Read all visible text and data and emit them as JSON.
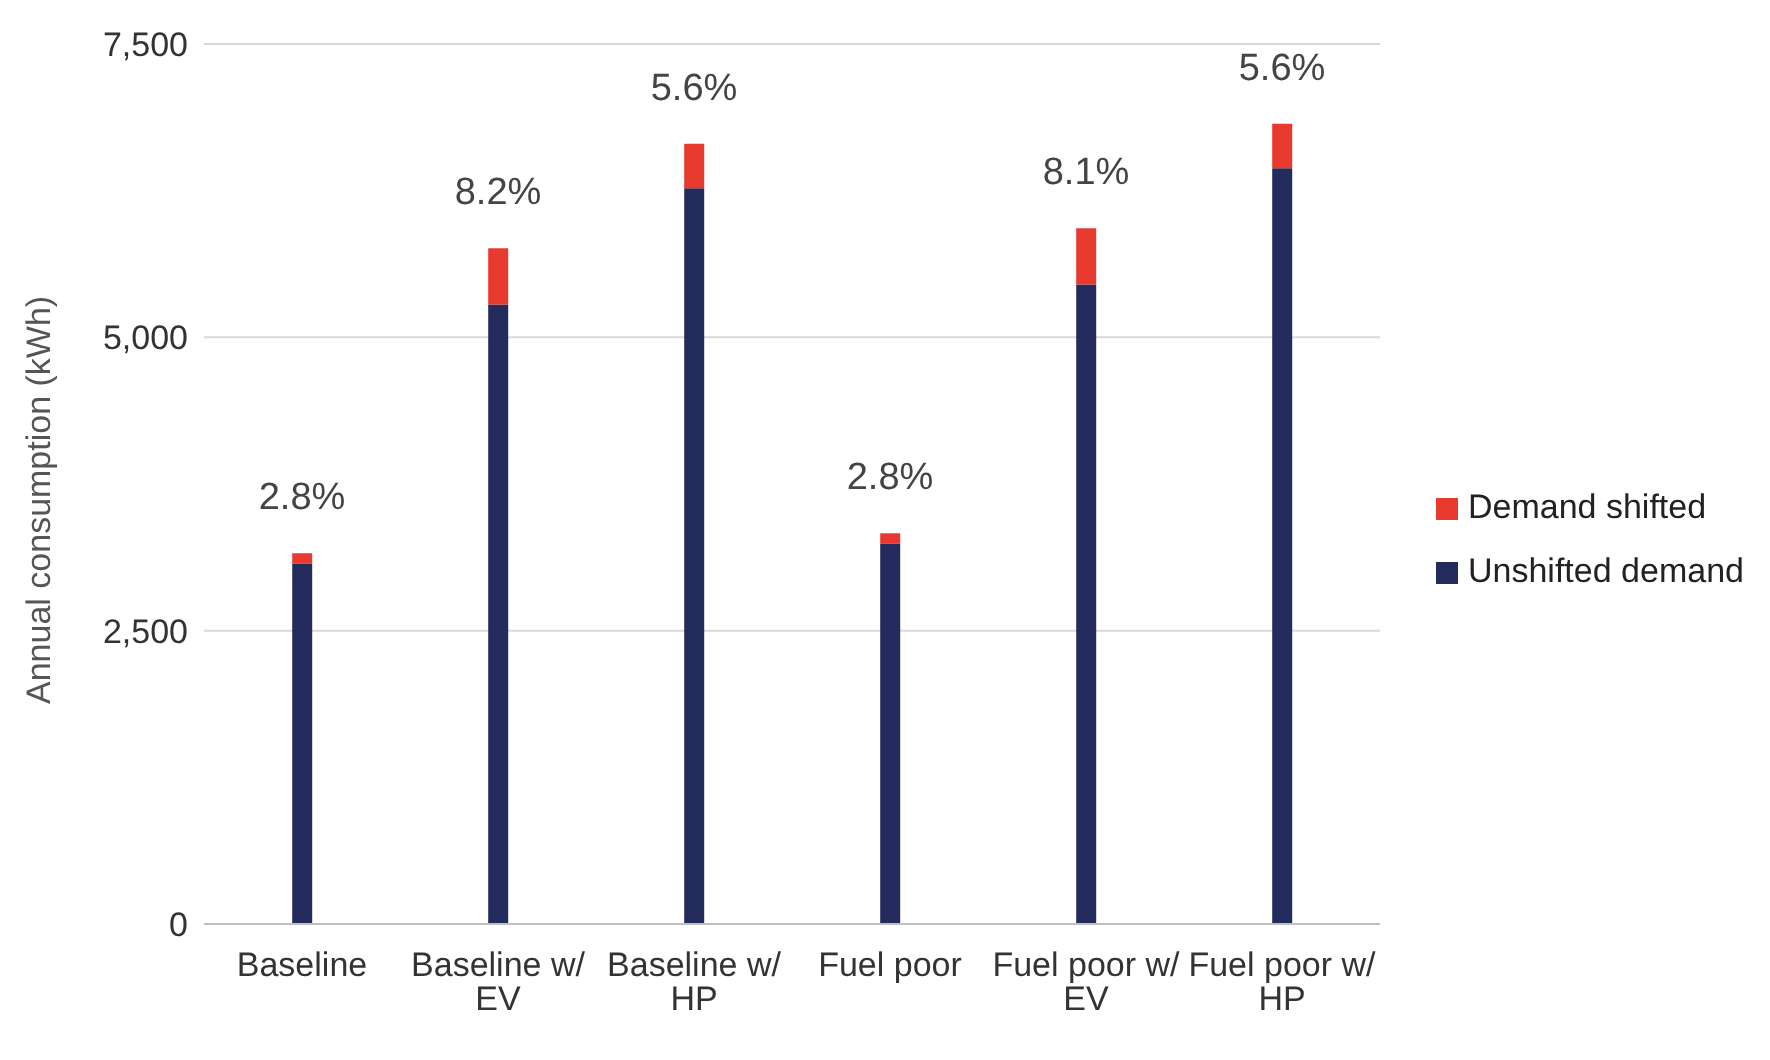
{
  "chart_data": {
    "type": "bar",
    "stacked": true,
    "ylabel": "Annual consumption (kWh)",
    "categories": [
      "Baseline",
      "Baseline w/ EV",
      "Baseline w/ HP",
      "Fuel poor",
      "Fuel poor w/ EV",
      "Fuel poor w/ HP"
    ],
    "series": [
      {
        "name": "Unshifted demand",
        "color": "#232a5c",
        "values": [
          3070,
          5280,
          6270,
          3240,
          5450,
          6440
        ]
      },
      {
        "name": "Demand shifted",
        "color": "#e8392f",
        "values": [
          90,
          480,
          380,
          90,
          480,
          380
        ]
      }
    ],
    "ylim": [
      0,
      7500
    ],
    "yticks": [
      0,
      {
        "value": 2500,
        "label": "2,500"
      },
      {
        "value": 5000,
        "label": "5,000"
      },
      {
        "value": 7500,
        "label": "7,500"
      }
    ],
    "grid": "y",
    "legend": "right",
    "annotations": [
      {
        "text": "2.8%",
        "x": "Baseline",
        "y": 3160
      },
      {
        "text": "8.2%",
        "x": "Baseline w/ EV",
        "y": 5760
      },
      {
        "text": "5.6%",
        "x": "Baseline w/ HP",
        "y": 6650
      },
      {
        "text": "2.8%",
        "x": "Fuel poor",
        "y": 3330
      },
      {
        "text": "8.1%",
        "x": "Fuel poor w/ EV",
        "y": 5930
      },
      {
        "text": "5.6%",
        "x": "Fuel poor w/ HP",
        "y": 6820
      }
    ]
  }
}
